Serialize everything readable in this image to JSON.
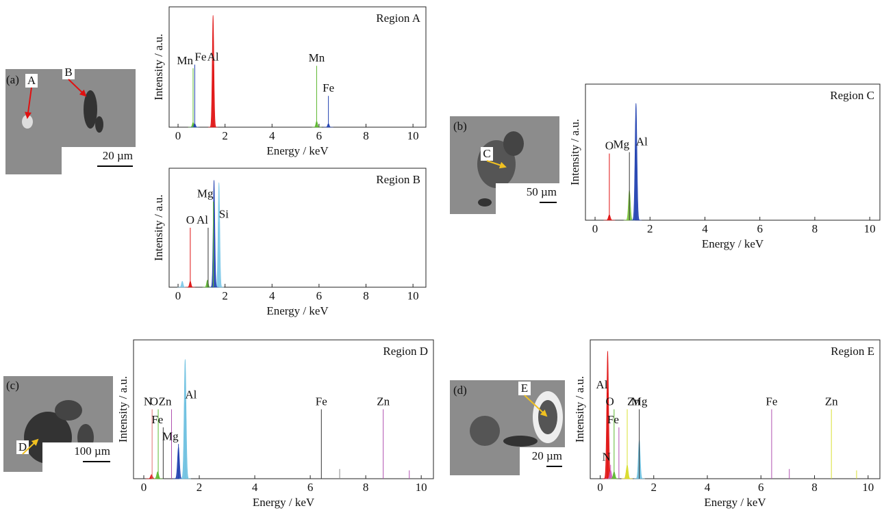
{
  "chart_data": [
    {
      "type": "spectrum",
      "title": "Region A",
      "xlabel": "Energy / keV",
      "ylabel": "Intensity / a.u.",
      "xlim": [
        -0.38,
        10.55
      ],
      "xticks": [
        0,
        2,
        4,
        6,
        8,
        10
      ],
      "ylim": [
        0,
        100
      ],
      "peaks": [
        {
          "x": 1.49,
          "height": 93,
          "color": "#e01010"
        },
        {
          "x": 0.64,
          "height": 4,
          "color": "#5cb82e"
        },
        {
          "x": 0.71,
          "height": 3,
          "color": "#2040b0"
        },
        {
          "x": 5.9,
          "height": 5,
          "color": "#5cb82e"
        },
        {
          "x": 6.4,
          "height": 3,
          "color": "#2040b0"
        }
      ],
      "lines": [
        {
          "label": "Mn",
          "x": 0.64,
          "height": 49,
          "color": "#5cb82e"
        },
        {
          "label": "Fe",
          "x": 0.71,
          "height": 52,
          "color": "#2040b0"
        },
        {
          "label": "Al",
          "x": 1.49,
          "height": 52,
          "color": "#e01010"
        },
        {
          "label": "Mn",
          "x": 5.9,
          "height": 51,
          "color": "#5cb82e"
        },
        {
          "label": "Fe",
          "x": 6.4,
          "height": 26,
          "color": "#2040b0"
        }
      ]
    },
    {
      "type": "spectrum",
      "title": "Region B",
      "xlabel": "Energy / keV",
      "ylabel": "Intensity / a.u.",
      "xlim": [
        -0.38,
        10.55
      ],
      "xticks": [
        0,
        2,
        4,
        6,
        8,
        10
      ],
      "ylim": [
        0,
        100
      ],
      "peaks": [
        {
          "x": 0.18,
          "height": 5,
          "color": "#7cc8e8"
        },
        {
          "x": 0.52,
          "height": 5,
          "color": "#e01010"
        },
        {
          "x": 1.25,
          "height": 6,
          "color": "#5cb82e"
        },
        {
          "x": 1.74,
          "height": 88,
          "color": "#7cc8e8"
        },
        {
          "x": 1.53,
          "height": 90,
          "color": "#2040b0"
        }
      ],
      "lines": [
        {
          "label": "O",
          "x": 0.52,
          "height": 50,
          "color": "#e01010"
        },
        {
          "label": "Al",
          "x": 1.28,
          "height": 50,
          "color": "#333333"
        },
        {
          "label": "Mg",
          "x": 1.5,
          "height": 72,
          "color": "#5cb82e"
        },
        {
          "label": "Si",
          "x": 1.74,
          "height": 55,
          "color": "#7cc8e8"
        }
      ]
    },
    {
      "type": "spectrum",
      "title": "Region C",
      "xlabel": "Energy / keV",
      "ylabel": "Intensity / a.u.",
      "xlim": [
        -0.35,
        10.37
      ],
      "xticks": [
        0,
        2,
        4,
        6,
        8,
        10
      ],
      "ylim": [
        0,
        100
      ],
      "peaks": [
        {
          "x": 0.52,
          "height": 4,
          "color": "#e01010"
        },
        {
          "x": 1.25,
          "height": 22,
          "color": "#7cc83a"
        },
        {
          "x": 1.49,
          "height": 86,
          "color": "#2040b0"
        }
      ],
      "lines": [
        {
          "label": "O",
          "x": 0.52,
          "height": 49,
          "color": "#e01010"
        },
        {
          "label": "Mg",
          "x": 1.25,
          "height": 50,
          "color": "#333333"
        },
        {
          "label": "Al",
          "x": 1.49,
          "height": 52,
          "color": "#2040b0"
        }
      ]
    },
    {
      "type": "spectrum",
      "title": "Region D",
      "xlabel": "Energy / keV",
      "ylabel": "Intensity / a.u.",
      "xlim": [
        -0.37,
        10.44
      ],
      "xticks": [
        0,
        2,
        4,
        6,
        8,
        10
      ],
      "ylim": [
        0,
        100
      ],
      "peaks": [
        {
          "x": 0.28,
          "height": 3,
          "color": "#e01010"
        },
        {
          "x": 0.5,
          "height": 5,
          "color": "#5cb82e"
        },
        {
          "x": 1.25,
          "height": 23,
          "color": "#2040b0"
        },
        {
          "x": 1.49,
          "height": 86,
          "color": "#6cc0e0"
        }
      ],
      "lines": [
        {
          "label": "N",
          "x": 0.3,
          "height": 50,
          "color": "#e07070"
        },
        {
          "label": "O",
          "x": 0.52,
          "height": 50,
          "color": "#5cb82e"
        },
        {
          "label": "Fe",
          "x": 0.7,
          "height": 37,
          "color": "#333333"
        },
        {
          "label": "Zn",
          "x": 1.0,
          "height": 50,
          "color": "#b050b0"
        },
        {
          "label": "Mg",
          "x": 1.25,
          "height": 25,
          "color": "#2040b0"
        },
        {
          "label": "Al",
          "x": 1.49,
          "height": 55,
          "color": "#6cc0e0"
        },
        {
          "label": "Fe",
          "x": 6.4,
          "height": 50,
          "color": "#333333"
        },
        {
          "label": null,
          "x": 7.06,
          "height": 7,
          "color": "#888888"
        },
        {
          "label": "Zn",
          "x": 8.63,
          "height": 50,
          "color": "#b050b0"
        },
        {
          "label": null,
          "x": 9.57,
          "height": 6,
          "color": "#b050b0"
        }
      ]
    },
    {
      "type": "spectrum",
      "title": "Region E",
      "xlabel": "Energy / keV",
      "ylabel": "Intensity / a.u.",
      "xlim": [
        -0.37,
        10.44
      ],
      "xticks": [
        0,
        2,
        4,
        6,
        8,
        10
      ],
      "ylim": [
        0,
        100
      ],
      "peaks": [
        {
          "x": 0.28,
          "height": 92,
          "color": "#e01010"
        },
        {
          "x": 0.39,
          "height": 6,
          "color": "#d060c0"
        },
        {
          "x": 0.52,
          "height": 5,
          "color": "#5cb82e"
        },
        {
          "x": 1.0,
          "height": 8,
          "color": "#f0a020"
        },
        {
          "x": 1.01,
          "height": 10,
          "color": "#d8e030"
        },
        {
          "x": 1.46,
          "height": 28,
          "color": "#6cc0e0"
        }
      ],
      "lines": [
        {
          "label": "Al",
          "x": 0.28,
          "height": 62,
          "color": "#e01010"
        },
        {
          "label": "N",
          "x": 0.39,
          "height": 10,
          "color": "#d060c0"
        },
        {
          "label": "O",
          "x": 0.52,
          "height": 50,
          "color": "#5cb82e"
        },
        {
          "label": "Fe",
          "x": 0.7,
          "height": 37,
          "color": "#b050b0"
        },
        {
          "label": "Zn",
          "x": 1.01,
          "height": 50,
          "color": "#d8e030"
        },
        {
          "label": "Mg",
          "x": 1.46,
          "height": 50,
          "color": "#333333"
        },
        {
          "label": "Fe",
          "x": 6.4,
          "height": 50,
          "color": "#b050b0"
        },
        {
          "label": null,
          "x": 7.06,
          "height": 7,
          "color": "#b050b0"
        },
        {
          "label": "Zn",
          "x": 8.63,
          "height": 50,
          "color": "#d8e030"
        },
        {
          "label": null,
          "x": 9.57,
          "height": 6,
          "color": "#d8e030"
        }
      ]
    }
  ],
  "images": [
    {
      "panel": "(a)",
      "markers": [
        "A",
        "B"
      ],
      "scale_bar": "20 µm"
    },
    {
      "panel": "(b)",
      "markers": [
        "C"
      ],
      "scale_bar": "50 µm"
    },
    {
      "panel": "(c)",
      "markers": [
        "D"
      ],
      "scale_bar": "100 µm"
    },
    {
      "panel": "(d)",
      "markers": [
        "E"
      ],
      "scale_bar": "20 µm"
    }
  ]
}
